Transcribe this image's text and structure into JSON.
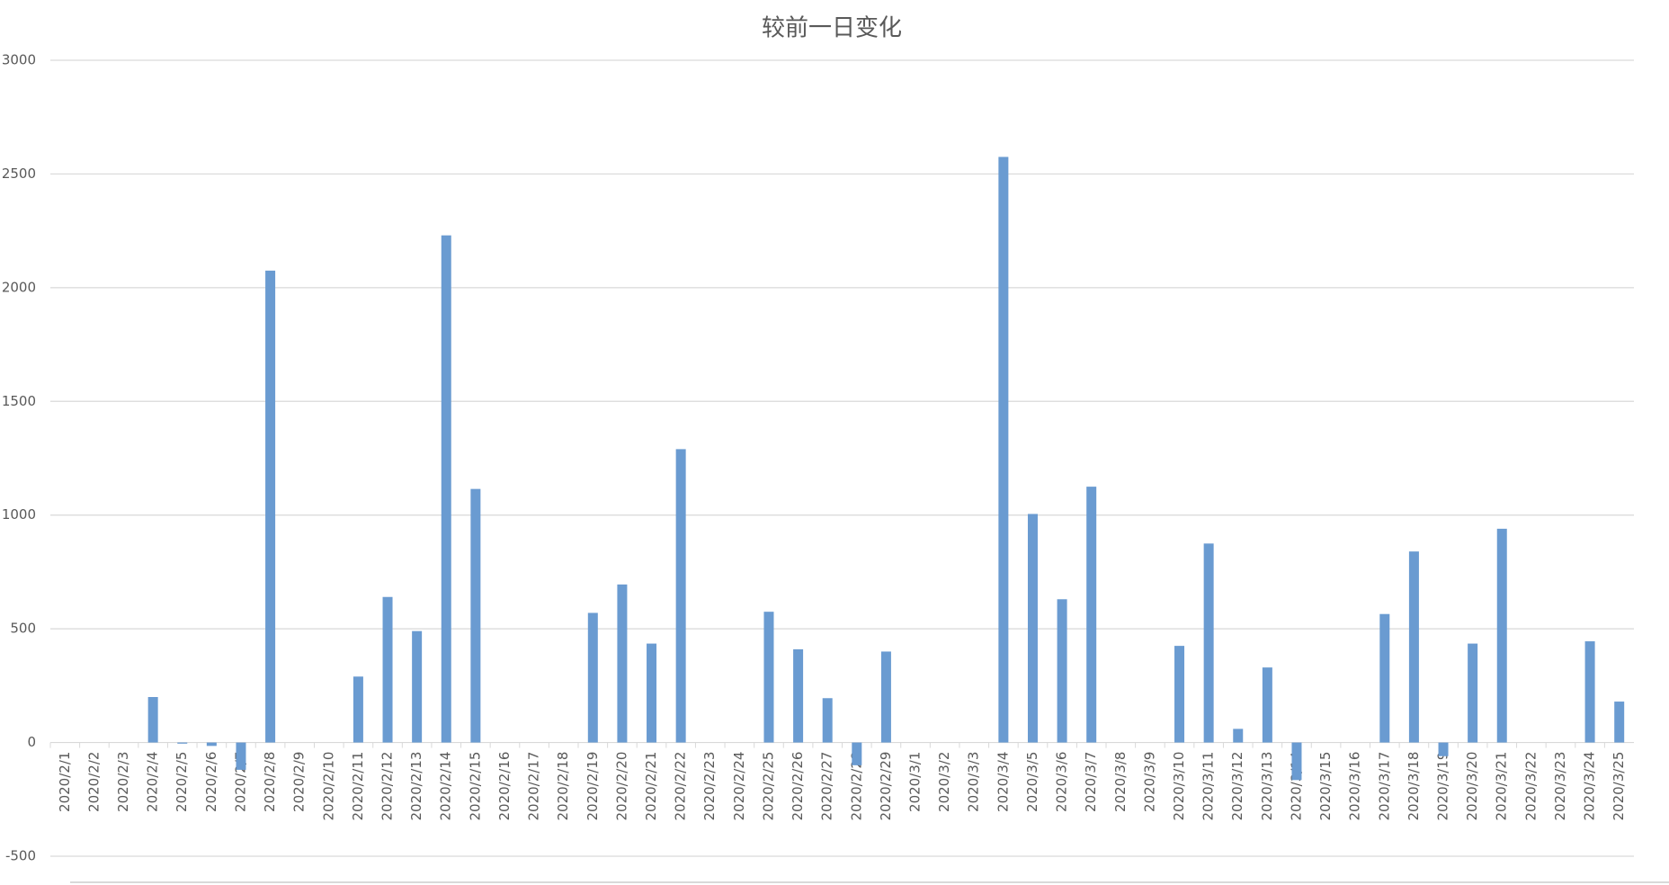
{
  "chart_data": {
    "type": "bar",
    "title": "较前一日变化",
    "categories": [
      "2020/2/1",
      "2020/2/2",
      "2020/2/3",
      "2020/2/4",
      "2020/2/5",
      "2020/2/6",
      "2020/2/7",
      "2020/2/8",
      "2020/2/9",
      "2020/2/10",
      "2020/2/11",
      "2020/2/12",
      "2020/2/13",
      "2020/2/14",
      "2020/2/15",
      "2020/2/16",
      "2020/2/17",
      "2020/2/18",
      "2020/2/19",
      "2020/2/20",
      "2020/2/21",
      "2020/2/22",
      "2020/2/23",
      "2020/2/24",
      "2020/2/25",
      "2020/2/26",
      "2020/2/27",
      "2020/2/28",
      "2020/2/29",
      "2020/3/1",
      "2020/3/2",
      "2020/3/3",
      "2020/3/4",
      "2020/3/5",
      "2020/3/6",
      "2020/3/7",
      "2020/3/8",
      "2020/3/9",
      "2020/3/10",
      "2020/3/11",
      "2020/3/12",
      "2020/3/13",
      "2020/3/14",
      "2020/3/15",
      "2020/3/16",
      "2020/3/17",
      "2020/3/18",
      "2020/3/19",
      "2020/3/20",
      "2020/3/21",
      "2020/3/22",
      "2020/3/23",
      "2020/3/24",
      "2020/3/25"
    ],
    "values": [
      0,
      0,
      0,
      200,
      -5,
      -15,
      -120,
      2075,
      0,
      0,
      290,
      640,
      490,
      2230,
      1115,
      0,
      0,
      0,
      570,
      695,
      435,
      1290,
      0,
      0,
      575,
      410,
      195,
      -100,
      400,
      0,
      0,
      0,
      2575,
      1005,
      630,
      1125,
      0,
      0,
      425,
      875,
      60,
      330,
      -165,
      0,
      0,
      565,
      840,
      -60,
      435,
      940,
      0,
      0,
      445,
      180
    ],
    "color": "#6a9bd1",
    "ylim": [
      -500,
      3000
    ],
    "yticks": [
      -500,
      0,
      500,
      1000,
      1500,
      2000,
      2500,
      3000
    ],
    "grid": true
  }
}
